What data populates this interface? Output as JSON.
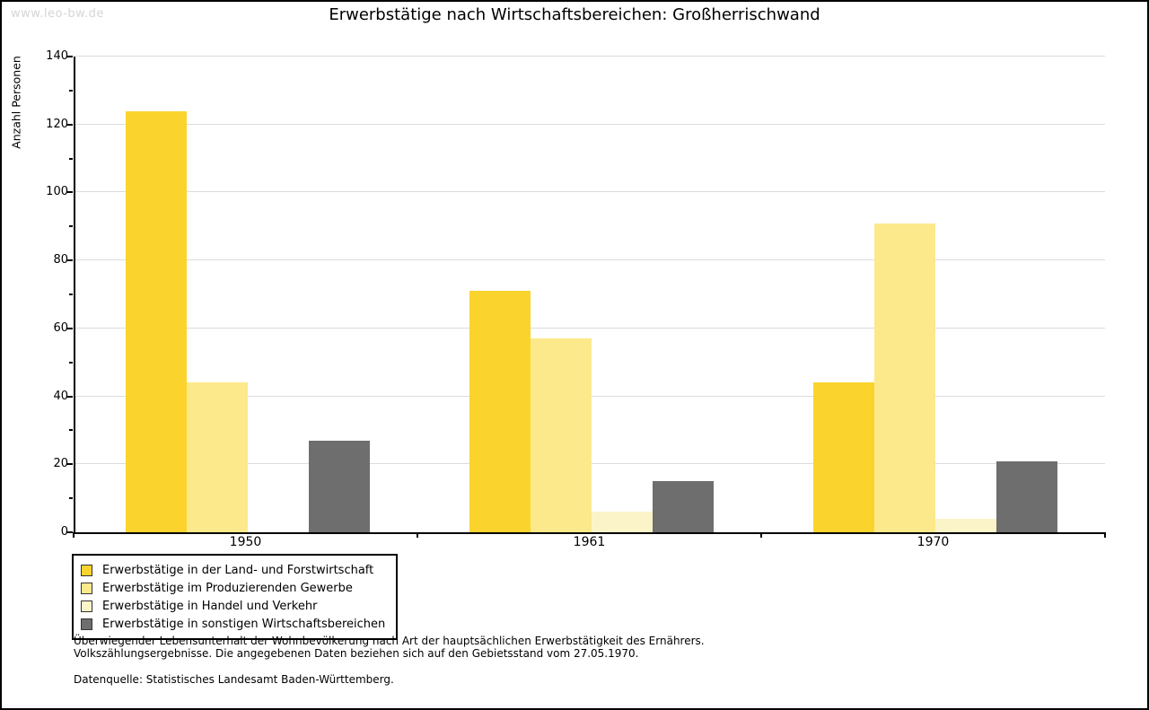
{
  "watermark": "www.leo-bw.de",
  "title": "Erwerbstätige nach Wirtschaftsbereichen: Großherrischwand",
  "chart_data": {
    "type": "bar",
    "title": "Erwerbstätige nach Wirtschaftsbereichen: Großherrischwand",
    "xlabel": "",
    "ylabel": "Anzahl Personen",
    "categories": [
      "1950",
      "1961",
      "1970"
    ],
    "series": [
      {
        "name": "Erwerbstätige in der Land- und Forstwirtschaft",
        "color": "#FBD32D",
        "values": [
          124,
          71,
          44
        ]
      },
      {
        "name": "Erwerbstätige im Produzierenden Gewerbe",
        "color": "#FCE98B",
        "values": [
          44,
          57,
          91
        ]
      },
      {
        "name": "Erwerbstätige in Handel und Verkehr",
        "color": "#FCF4C9",
        "values": [
          0,
          6,
          4
        ]
      },
      {
        "name": "Erwerbstätige in sonstigen Wirtschaftsbereichen",
        "color": "#6E6E6E",
        "values": [
          27,
          15,
          21
        ]
      }
    ],
    "ylim": [
      0,
      140
    ],
    "ytick_major_interval": 20,
    "ytick_minor_interval": 10,
    "grid": true,
    "gridline_color": "#dcdcdc",
    "legend_position": "bottom-left"
  },
  "footnote": {
    "line1": "Überwiegender Lebensunterhalt der Wohnbevölkerung nach Art der hauptsächlichen Erwerbstätigkeit des Ernährers.",
    "line2": "Volkszählungsergebnisse. Die angegebenen Daten beziehen sich auf den Gebietsstand vom 27.05.1970."
  },
  "source": "Datenquelle: Statistisches Landesamt Baden-Württemberg."
}
